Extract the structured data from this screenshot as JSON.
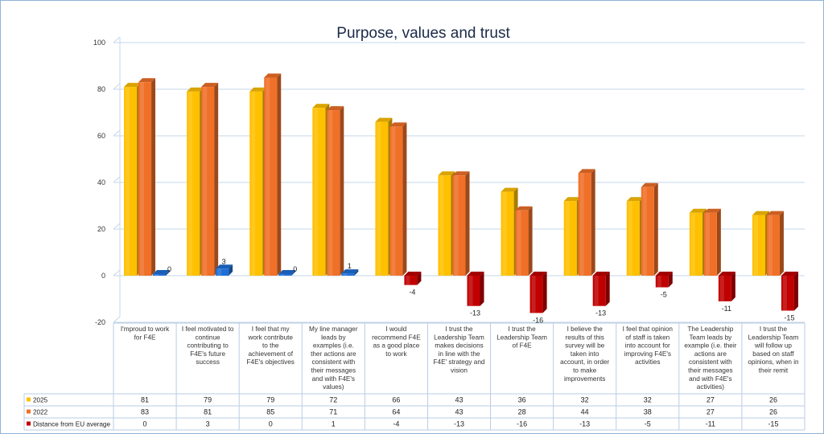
{
  "chart_data": {
    "type": "bar",
    "title": "Purpose, values and trust",
    "ylim": [
      -20,
      100
    ],
    "yticks": [
      -20,
      0,
      20,
      40,
      60,
      80,
      100
    ],
    "grid": true,
    "legend": "data-table-left",
    "categories": [
      "I'mproud to work for F4E",
      "I feel motivated to continue contributing to F4E's future success",
      "I feel that my work contribute to the achievement of F4E's objectives",
      "My line manager leads by examples (i.e. ther actions are consistent with their messages and with F4E's values)",
      "I would recommend F4E as a good place to work",
      "I trust the Leadership Team makes decisions in line with the F4E' strategy and vision",
      "I trust the Leadership Team of F4E",
      "I believe the results of this survey will be taken into account, in order to make improvements",
      "I feel that opinion of staff is taken into account for improving F4E's activities",
      "The Leadership Team leads by example (i.e. their actions are consistent with their messages and with F4E's activities)",
      "I trust the Leadership Team will follow up based on staff opinions, when in their remit"
    ],
    "category_lines": [
      [
        "I'mproud to work",
        "for F4E"
      ],
      [
        "I feel motivated to",
        "continue",
        "contributing to",
        "F4E's future",
        "success"
      ],
      [
        "I feel that my",
        "work contribute",
        "to the",
        "achievement of",
        "F4E's objectives"
      ],
      [
        "My line manager",
        "leads by",
        "examples (i.e.",
        "ther actions are",
        "consistent with",
        "their messages",
        "and with F4E's",
        "values)"
      ],
      [
        "I would",
        "recommend F4E",
        "as a good place",
        "to work"
      ],
      [
        "I trust the",
        "Leadership Team",
        "makes decisions",
        "in line with the",
        "F4E' strategy and",
        "vision"
      ],
      [
        "I trust the",
        "Leadership Team",
        "of F4E"
      ],
      [
        "I believe the",
        "results of this",
        "survey will be",
        "taken into",
        "account, in order",
        "to make",
        "improvements"
      ],
      [
        "I feel that opinion",
        "of staff is taken",
        "into account for",
        "improving F4E's",
        "activities"
      ],
      [
        "The Leadership",
        "Team leads by",
        "example (i.e. their",
        "actions are",
        "consistent with",
        "their messages",
        "and with F4E's",
        "activities)"
      ],
      [
        "I trust the",
        "Leadership Team",
        "will follow up",
        "based on staff",
        "opinions, when in",
        "their remit"
      ]
    ],
    "series": [
      {
        "name": "2025",
        "values": [
          81,
          79,
          79,
          72,
          66,
          43,
          36,
          32,
          32,
          27,
          26
        ],
        "color": "#ffc000",
        "show_labels": false
      },
      {
        "name": "2022",
        "values": [
          83,
          81,
          85,
          71,
          64,
          43,
          28,
          44,
          38,
          27,
          26
        ],
        "color": "#f07028",
        "show_labels": false
      },
      {
        "name": "Distance from EU average",
        "values": [
          0,
          3,
          0,
          1,
          -4,
          -13,
          -16,
          -13,
          -5,
          -11,
          -15
        ],
        "color": "#c00000",
        "color_positive": "#1f6fd6",
        "show_labels": true
      }
    ]
  }
}
